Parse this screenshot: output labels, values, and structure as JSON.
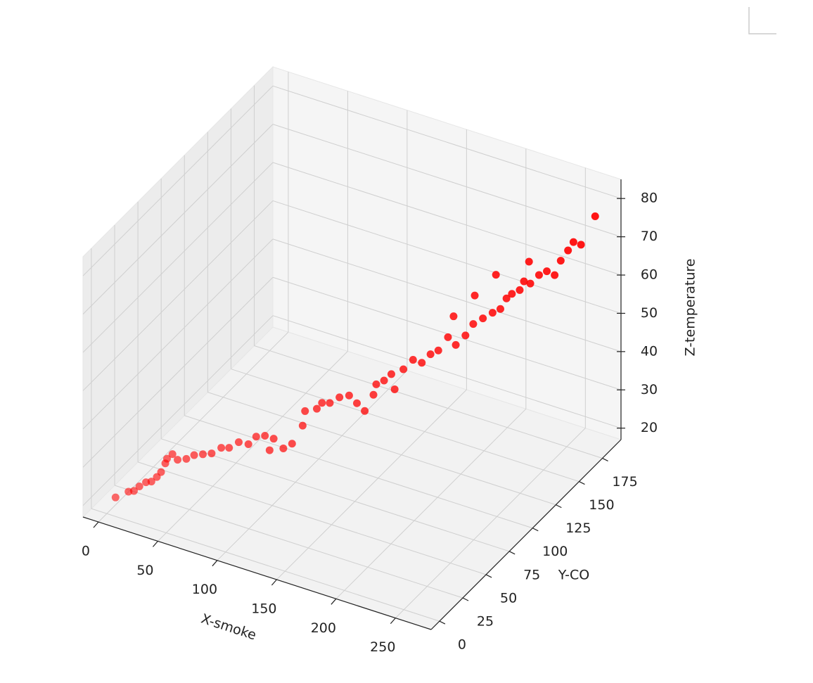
{
  "chart_data": {
    "type": "scatter3d",
    "xlabel": "X-smoke",
    "ylabel": "Y-CO",
    "zlabel": "Z-temperature",
    "color": "red",
    "xlim": [
      -13,
      280
    ],
    "xticks": [
      0,
      50,
      100,
      150,
      200,
      250
    ],
    "ylim": [
      -9,
      195
    ],
    "yticks": [
      0,
      25,
      50,
      75,
      100,
      125,
      150,
      175
    ],
    "zlim": [
      17,
      85
    ],
    "zticks": [
      20,
      30,
      40,
      50,
      60,
      70,
      80
    ],
    "grid": true,
    "x": [
      5,
      12,
      15,
      18,
      22,
      25,
      28,
      30,
      32,
      35,
      38,
      40,
      45,
      50,
      55,
      60,
      65,
      70,
      75,
      80,
      85,
      90,
      95,
      90,
      100,
      105,
      110,
      112,
      118,
      120,
      125,
      130,
      135,
      140,
      145,
      150,
      150,
      155,
      158,
      160,
      165,
      170,
      175,
      180,
      185,
      190,
      195,
      200,
      205,
      210,
      215,
      220,
      222,
      225,
      230,
      232,
      235,
      240,
      245,
      250,
      252,
      255,
      258,
      262,
      270,
      200,
      210,
      190,
      230
    ],
    "y": [
      3,
      8,
      10,
      12,
      14,
      16,
      18,
      20,
      22,
      20,
      22,
      25,
      28,
      30,
      33,
      36,
      40,
      42,
      46,
      50,
      52,
      55,
      58,
      60,
      62,
      65,
      70,
      70,
      75,
      78,
      80,
      84,
      88,
      90,
      92,
      95,
      98,
      100,
      104,
      105,
      108,
      112,
      115,
      118,
      120,
      124,
      126,
      130,
      132,
      136,
      140,
      142,
      146,
      148,
      150,
      152,
      155,
      158,
      160,
      162,
      166,
      170,
      172,
      175,
      180,
      140,
      150,
      130,
      160
    ],
    "z": [
      21,
      22,
      22,
      23,
      24,
      24,
      25,
      26,
      28,
      30,
      31,
      29,
      29,
      30,
      30,
      30,
      31,
      31,
      32,
      31,
      33,
      33,
      32,
      28,
      29,
      30,
      34,
      38,
      38,
      39,
      39,
      40,
      40,
      38,
      36,
      40,
      42,
      43,
      44,
      40,
      45,
      47,
      46,
      48,
      49,
      52,
      50,
      52,
      55,
      56,
      57,
      58,
      60,
      61,
      62,
      64,
      63,
      65,
      66,
      65,
      68,
      70,
      72,
      71,
      78,
      60,
      64,
      56,
      67
    ]
  }
}
